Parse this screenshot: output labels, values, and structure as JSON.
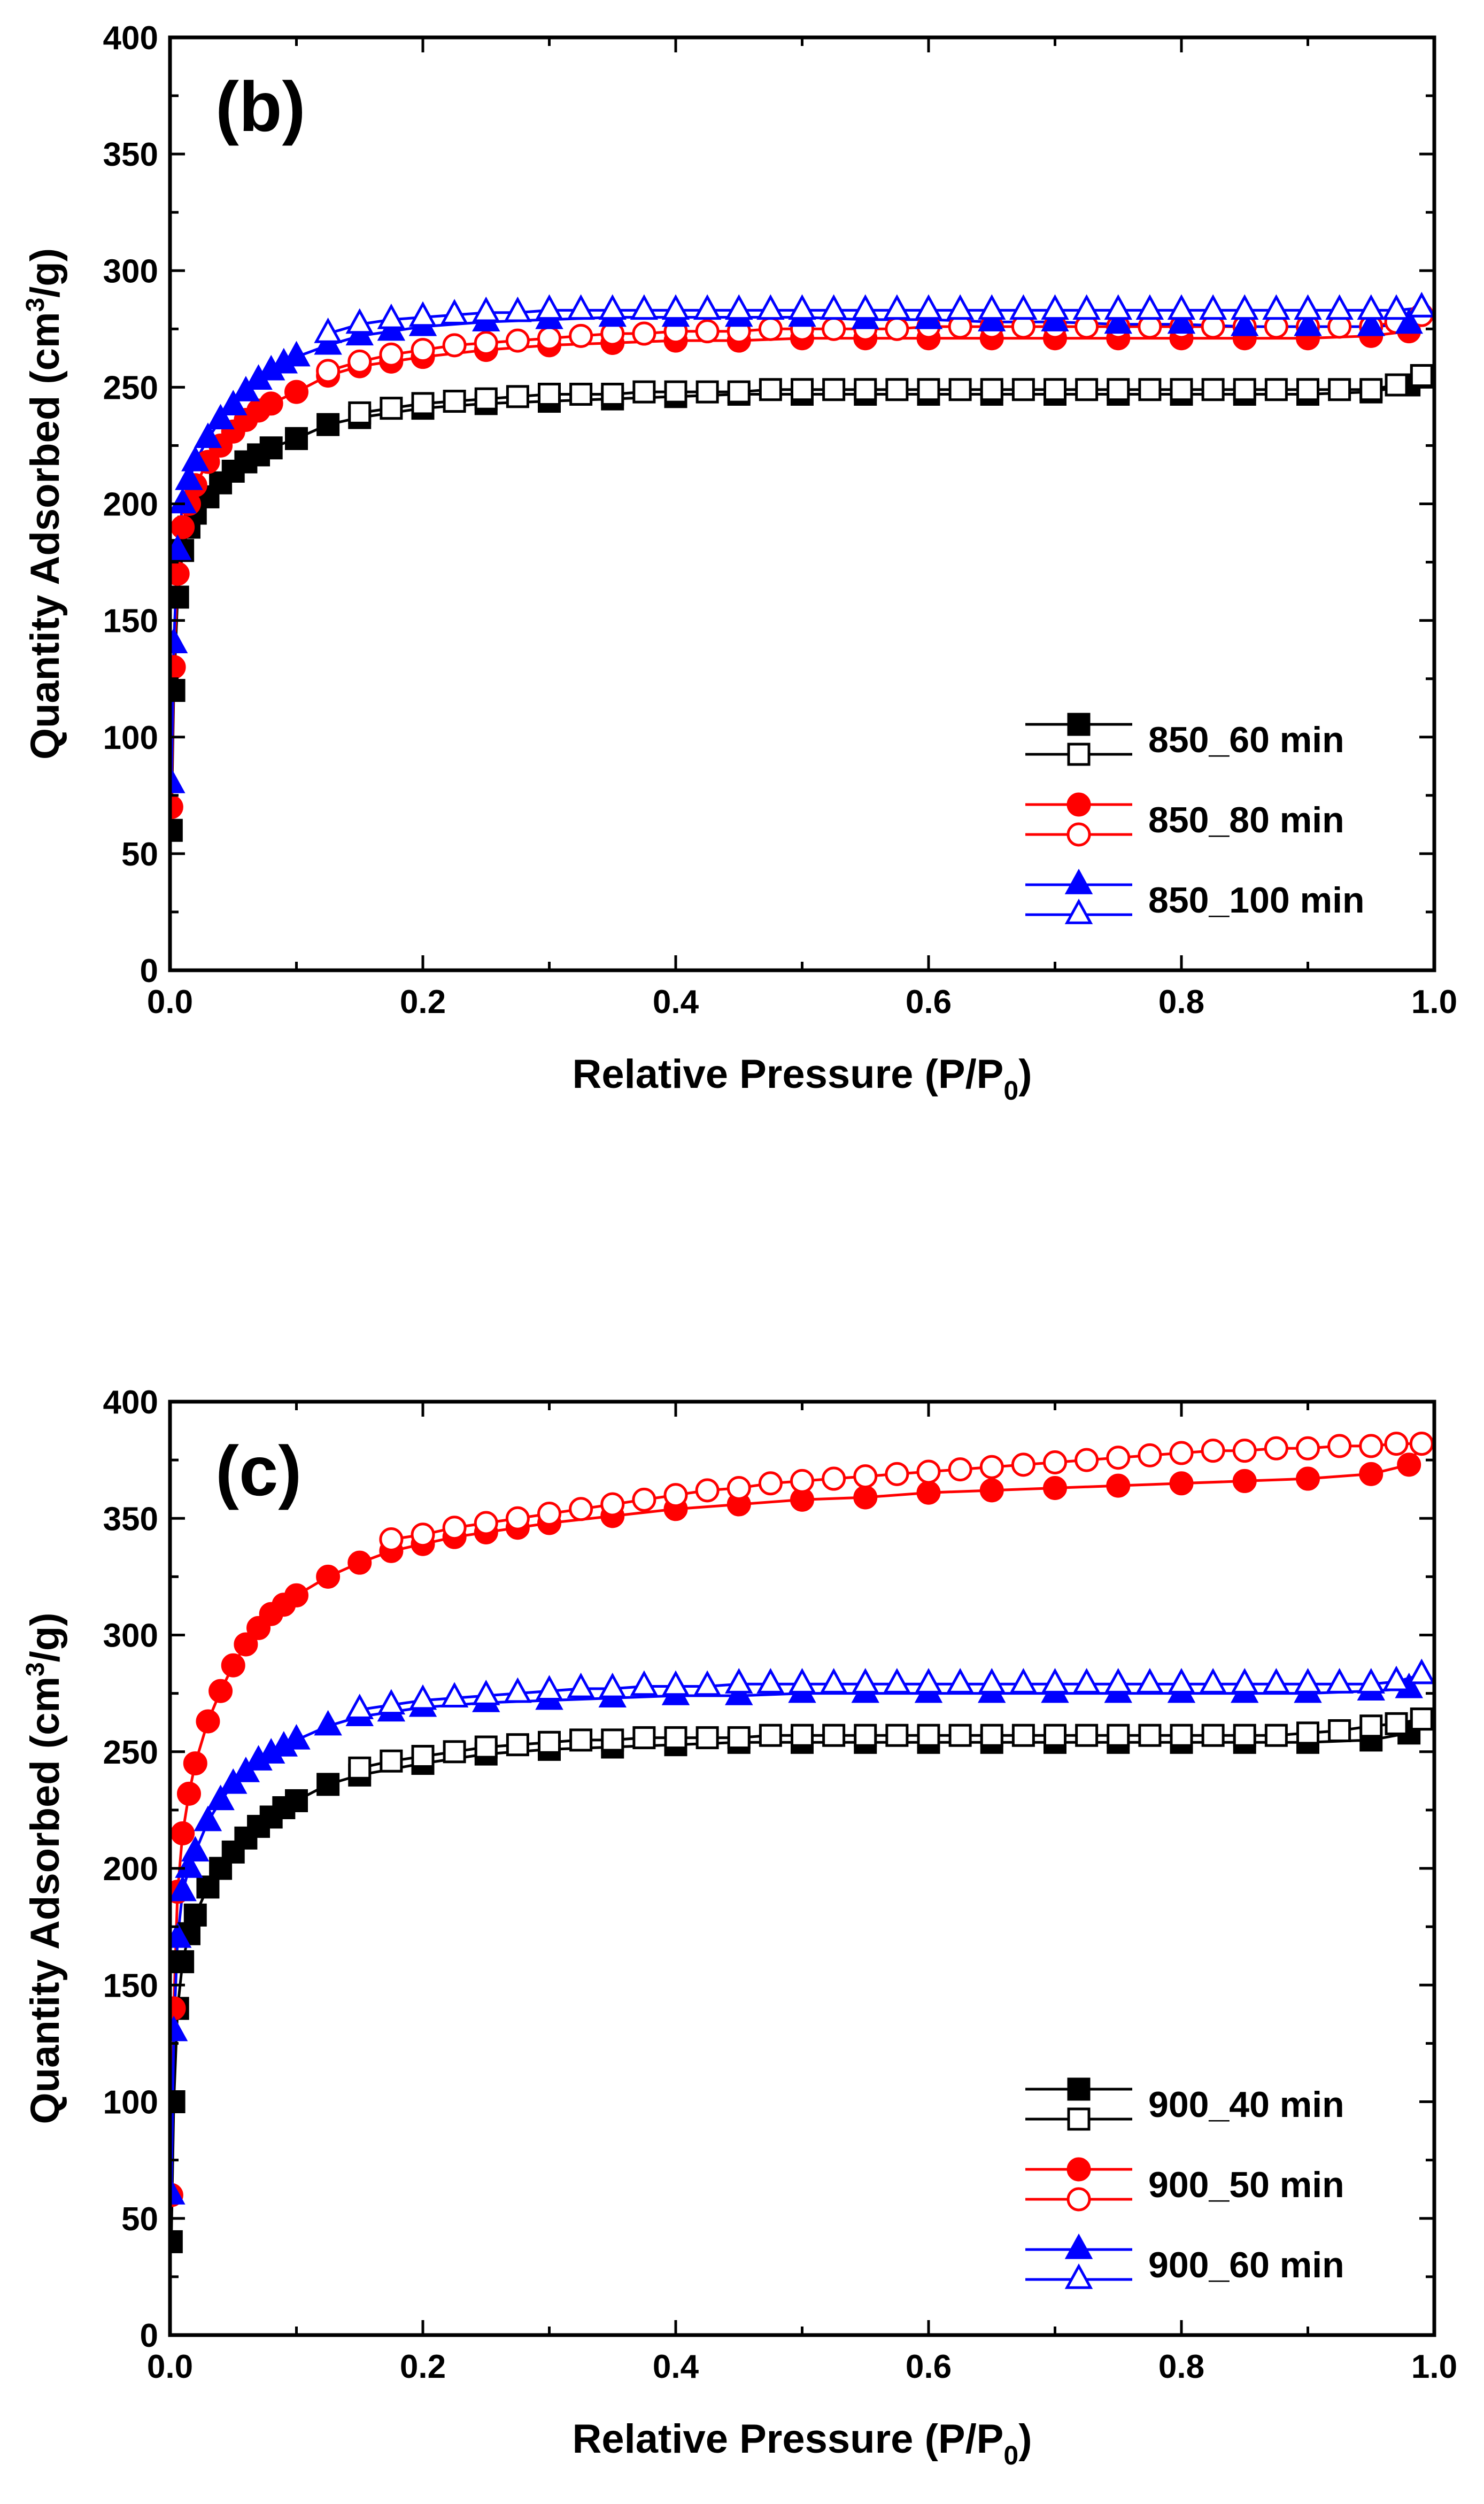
{
  "chart_data": [
    {
      "type": "scatter",
      "panel_label": "(b)",
      "xlabel": "Relative Pressure (P/P",
      "xlabel_sub": "0",
      "xlabel_end": ")",
      "ylabel": "Quantity Adsorbed (cm",
      "ylabel_sup": "3",
      "ylabel_end": "/g)",
      "xlim": [
        0,
        1.0
      ],
      "ylim": [
        0,
        400
      ],
      "xticks": [
        "0.0",
        "0.2",
        "0.4",
        "0.6",
        "0.8",
        "1.0"
      ],
      "yticks": [
        "0",
        "50",
        "100",
        "150",
        "200",
        "250",
        "300",
        "350",
        "400"
      ],
      "legend_position": "bottom-right",
      "series": [
        {
          "name": "850_60 min",
          "branch": "adsorption",
          "color": "#000000",
          "marker": "square",
          "filled": true,
          "x": [
            0.001,
            0.003,
            0.006,
            0.01,
            0.015,
            0.02,
            0.03,
            0.04,
            0.05,
            0.06,
            0.07,
            0.08,
            0.1,
            0.125,
            0.15,
            0.2,
            0.25,
            0.3,
            0.35,
            0.4,
            0.45,
            0.5,
            0.55,
            0.6,
            0.65,
            0.7,
            0.75,
            0.8,
            0.85,
            0.9,
            0.95,
            0.98,
            0.99
          ],
          "y": [
            60,
            120,
            160,
            180,
            190,
            196,
            203,
            209,
            214,
            218,
            221,
            224,
            228,
            234,
            237,
            241,
            243,
            244,
            245,
            246,
            247,
            247,
            247,
            247,
            247,
            247,
            247,
            247,
            247,
            247,
            248,
            251,
            255
          ]
        },
        {
          "name": "850_60 min",
          "branch": "desorption",
          "color": "#000000",
          "marker": "square",
          "filled": false,
          "x": [
            0.99,
            0.97,
            0.95,
            0.925,
            0.9,
            0.875,
            0.85,
            0.825,
            0.8,
            0.775,
            0.75,
            0.725,
            0.7,
            0.675,
            0.65,
            0.625,
            0.6,
            0.575,
            0.55,
            0.525,
            0.5,
            0.475,
            0.45,
            0.425,
            0.4,
            0.375,
            0.35,
            0.325,
            0.3,
            0.275,
            0.25,
            0.225,
            0.2,
            0.175,
            0.15
          ],
          "y": [
            255,
            251,
            249,
            249,
            249,
            249,
            249,
            249,
            249,
            249,
            249,
            249,
            249,
            249,
            249,
            249,
            249,
            249,
            249,
            249,
            249,
            249,
            248,
            248,
            248,
            248,
            247,
            247,
            247,
            246,
            245,
            244,
            243,
            241,
            239
          ]
        },
        {
          "name": "850_80 min",
          "branch": "adsorption",
          "color": "#ff0000",
          "marker": "circle",
          "filled": true,
          "x": [
            0.001,
            0.003,
            0.006,
            0.01,
            0.015,
            0.02,
            0.03,
            0.04,
            0.05,
            0.06,
            0.07,
            0.08,
            0.1,
            0.125,
            0.15,
            0.175,
            0.2,
            0.25,
            0.3,
            0.35,
            0.4,
            0.45,
            0.5,
            0.55,
            0.6,
            0.65,
            0.7,
            0.75,
            0.8,
            0.85,
            0.9,
            0.95,
            0.98,
            0.99
          ],
          "y": [
            70,
            130,
            170,
            190,
            200,
            208,
            218,
            225,
            231,
            236,
            240,
            243,
            248,
            255,
            259,
            261,
            263,
            266,
            268,
            269,
            270,
            270,
            271,
            271,
            271,
            271,
            271,
            271,
            271,
            271,
            271,
            272,
            274,
            281
          ]
        },
        {
          "name": "850_80 min",
          "branch": "desorption",
          "color": "#ff0000",
          "marker": "circle",
          "filled": false,
          "x": [
            0.99,
            0.97,
            0.95,
            0.925,
            0.9,
            0.875,
            0.85,
            0.825,
            0.8,
            0.775,
            0.75,
            0.725,
            0.7,
            0.675,
            0.65,
            0.625,
            0.6,
            0.575,
            0.55,
            0.525,
            0.5,
            0.475,
            0.45,
            0.425,
            0.4,
            0.375,
            0.35,
            0.325,
            0.3,
            0.275,
            0.25,
            0.225,
            0.2,
            0.175,
            0.15,
            0.125
          ],
          "y": [
            281,
            278,
            276,
            276,
            276,
            276,
            276,
            276,
            276,
            276,
            276,
            276,
            276,
            276,
            276,
            276,
            276,
            275,
            275,
            275,
            275,
            275,
            274,
            274,
            274,
            273,
            273,
            272,
            271,
            270,
            269,
            268,
            266,
            264,
            261,
            257
          ]
        },
        {
          "name": "850_100 min",
          "branch": "adsorption",
          "color": "#0000ff",
          "marker": "triangle",
          "filled": true,
          "x": [
            0.001,
            0.003,
            0.006,
            0.01,
            0.015,
            0.02,
            0.03,
            0.04,
            0.05,
            0.06,
            0.07,
            0.08,
            0.09,
            0.1,
            0.125,
            0.15,
            0.175,
            0.2,
            0.25,
            0.3,
            0.35,
            0.4,
            0.45,
            0.5,
            0.55,
            0.6,
            0.65,
            0.7,
            0.75,
            0.8,
            0.85,
            0.9,
            0.95,
            0.98,
            0.99
          ],
          "y": [
            80,
            140,
            180,
            200,
            210,
            218,
            228,
            236,
            242,
            248,
            253,
            257,
            260,
            263,
            268,
            272,
            274,
            276,
            278,
            279,
            280,
            280,
            280,
            280,
            279,
            279,
            278,
            278,
            277,
            277,
            276,
            276,
            276,
            277,
            284
          ]
        },
        {
          "name": "850_100 min",
          "branch": "desorption",
          "color": "#0000ff",
          "marker": "triangle",
          "filled": false,
          "x": [
            0.99,
            0.97,
            0.95,
            0.925,
            0.9,
            0.875,
            0.85,
            0.825,
            0.8,
            0.775,
            0.75,
            0.725,
            0.7,
            0.675,
            0.65,
            0.625,
            0.6,
            0.575,
            0.55,
            0.525,
            0.5,
            0.475,
            0.45,
            0.425,
            0.4,
            0.375,
            0.35,
            0.325,
            0.3,
            0.275,
            0.25,
            0.225,
            0.2,
            0.175,
            0.15,
            0.125
          ],
          "y": [
            284,
            283,
            283,
            283,
            283,
            283,
            283,
            283,
            283,
            283,
            283,
            283,
            283,
            283,
            283,
            283,
            283,
            283,
            283,
            283,
            283,
            283,
            283,
            283,
            283,
            283,
            283,
            283,
            283,
            282,
            282,
            281,
            280,
            279,
            277,
            273
          ]
        }
      ]
    },
    {
      "type": "scatter",
      "panel_label": "(c)",
      "xlabel": "Relative Pressure (P/P",
      "xlabel_sub": "0",
      "xlabel_end": ")",
      "ylabel": "Quantity Adsorbed (cm",
      "ylabel_sup": "3",
      "ylabel_end": "/g)",
      "xlim": [
        0,
        1.0
      ],
      "ylim": [
        0,
        400
      ],
      "xticks": [
        "0.0",
        "0.2",
        "0.4",
        "0.6",
        "0.8",
        "1.0"
      ],
      "yticks": [
        "0",
        "50",
        "100",
        "150",
        "200",
        "250",
        "300",
        "350",
        "400"
      ],
      "legend_position": "bottom-right",
      "series": [
        {
          "name": "900_40 min",
          "branch": "adsorption",
          "color": "#000000",
          "marker": "square",
          "filled": true,
          "x": [
            0.001,
            0.003,
            0.006,
            0.01,
            0.015,
            0.02,
            0.03,
            0.04,
            0.05,
            0.06,
            0.07,
            0.08,
            0.09,
            0.1,
            0.125,
            0.15,
            0.2,
            0.25,
            0.3,
            0.35,
            0.4,
            0.45,
            0.5,
            0.55,
            0.6,
            0.65,
            0.7,
            0.75,
            0.8,
            0.85,
            0.9,
            0.95,
            0.98,
            0.99
          ],
          "y": [
            40,
            100,
            140,
            160,
            172,
            180,
            192,
            200,
            207,
            213,
            218,
            222,
            226,
            229,
            236,
            240,
            245,
            249,
            251,
            252,
            253,
            254,
            254,
            254,
            254,
            254,
            254,
            254,
            254,
            254,
            254,
            255,
            258,
            264
          ]
        },
        {
          "name": "900_40 min",
          "branch": "desorption",
          "color": "#000000",
          "marker": "square",
          "filled": false,
          "x": [
            0.99,
            0.97,
            0.95,
            0.925,
            0.9,
            0.875,
            0.85,
            0.825,
            0.8,
            0.775,
            0.75,
            0.725,
            0.7,
            0.675,
            0.65,
            0.625,
            0.6,
            0.575,
            0.55,
            0.525,
            0.5,
            0.475,
            0.45,
            0.425,
            0.4,
            0.375,
            0.35,
            0.325,
            0.3,
            0.275,
            0.25,
            0.225,
            0.2,
            0.175,
            0.15
          ],
          "y": [
            264,
            262,
            261,
            259,
            258,
            257,
            257,
            257,
            257,
            257,
            257,
            257,
            257,
            257,
            257,
            257,
            257,
            257,
            257,
            257,
            257,
            257,
            256,
            256,
            256,
            256,
            255,
            255,
            254,
            253,
            252,
            250,
            248,
            246,
            243
          ]
        },
        {
          "name": "900_50 min",
          "branch": "adsorption",
          "color": "#ff0000",
          "marker": "circle",
          "filled": true,
          "x": [
            0.001,
            0.003,
            0.006,
            0.01,
            0.015,
            0.02,
            0.03,
            0.04,
            0.05,
            0.06,
            0.07,
            0.08,
            0.09,
            0.1,
            0.125,
            0.15,
            0.175,
            0.2,
            0.225,
            0.25,
            0.275,
            0.3,
            0.35,
            0.4,
            0.45,
            0.5,
            0.55,
            0.6,
            0.65,
            0.7,
            0.75,
            0.8,
            0.85,
            0.9,
            0.95,
            0.98,
            0.99
          ],
          "y": [
            60,
            140,
            190,
            215,
            232,
            245,
            263,
            276,
            287,
            296,
            303,
            309,
            313,
            317,
            325,
            331,
            336,
            339,
            342,
            344,
            346,
            348,
            351,
            354,
            356,
            358,
            359,
            361,
            362,
            363,
            364,
            365,
            366,
            367,
            369,
            373,
            382
          ]
        },
        {
          "name": "900_50 min",
          "branch": "desorption",
          "color": "#ff0000",
          "marker": "circle",
          "filled": false,
          "x": [
            0.99,
            0.97,
            0.95,
            0.925,
            0.9,
            0.875,
            0.85,
            0.825,
            0.8,
            0.775,
            0.75,
            0.725,
            0.7,
            0.675,
            0.65,
            0.625,
            0.6,
            0.575,
            0.55,
            0.525,
            0.5,
            0.475,
            0.45,
            0.425,
            0.4,
            0.375,
            0.35,
            0.325,
            0.3,
            0.275,
            0.25,
            0.225,
            0.2,
            0.175
          ],
          "y": [
            382,
            382,
            381,
            381,
            380,
            380,
            379,
            379,
            378,
            377,
            376,
            375,
            374,
            373,
            372,
            371,
            370,
            369,
            368,
            367,
            366,
            365,
            363,
            362,
            360,
            358,
            356,
            354,
            352,
            350,
            348,
            346,
            343,
            341
          ]
        },
        {
          "name": "900_60 min",
          "branch": "adsorption",
          "color": "#0000ff",
          "marker": "triangle",
          "filled": true,
          "x": [
            0.001,
            0.003,
            0.006,
            0.01,
            0.015,
            0.02,
            0.03,
            0.04,
            0.05,
            0.06,
            0.07,
            0.08,
            0.09,
            0.1,
            0.125,
            0.15,
            0.175,
            0.2,
            0.25,
            0.3,
            0.35,
            0.4,
            0.45,
            0.5,
            0.55,
            0.6,
            0.65,
            0.7,
            0.75,
            0.8,
            0.85,
            0.9,
            0.95,
            0.98,
            0.99
          ],
          "y": [
            60,
            130,
            170,
            190,
            200,
            207,
            220,
            229,
            236,
            241,
            246,
            249,
            252,
            255,
            261,
            265,
            267,
            269,
            271,
            272,
            273,
            274,
            274,
            275,
            275,
            275,
            275,
            275,
            275,
            275,
            275,
            275,
            276,
            277,
            283
          ]
        },
        {
          "name": "900_60 min",
          "branch": "desorption",
          "color": "#0000ff",
          "marker": "triangle",
          "filled": false,
          "x": [
            0.99,
            0.97,
            0.95,
            0.925,
            0.9,
            0.875,
            0.85,
            0.825,
            0.8,
            0.775,
            0.75,
            0.725,
            0.7,
            0.675,
            0.65,
            0.625,
            0.6,
            0.575,
            0.55,
            0.525,
            0.5,
            0.475,
            0.45,
            0.425,
            0.4,
            0.375,
            0.35,
            0.325,
            0.3,
            0.275,
            0.25,
            0.225,
            0.2,
            0.175,
            0.15
          ],
          "y": [
            283,
            280,
            279,
            279,
            279,
            279,
            279,
            279,
            279,
            279,
            279,
            279,
            279,
            279,
            279,
            279,
            279,
            279,
            279,
            279,
            279,
            279,
            279,
            278,
            278,
            278,
            277,
            277,
            276,
            275,
            274,
            273,
            272,
            270,
            268
          ]
        }
      ]
    }
  ]
}
